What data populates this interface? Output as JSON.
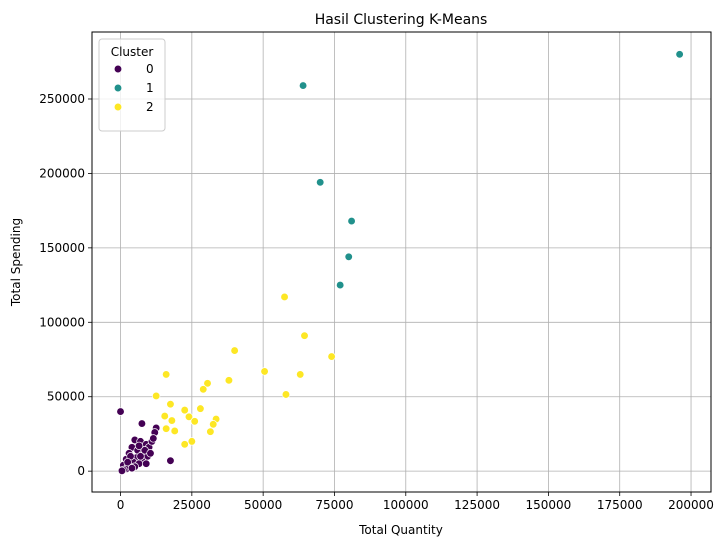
{
  "chart_data": {
    "type": "scatter",
    "title": "Hasil Clustering K-Means",
    "xlabel": "Total Quantity",
    "ylabel": "Total Spending",
    "xlim": [
      -10000,
      207000
    ],
    "ylim": [
      -14000,
      295000
    ],
    "xticks": [
      0,
      25000,
      50000,
      75000,
      100000,
      125000,
      150000,
      175000,
      200000
    ],
    "yticks": [
      0,
      50000,
      100000,
      150000,
      200000,
      250000
    ],
    "grid": true,
    "legend": {
      "title": "Cluster",
      "position": "top-left"
    },
    "series": [
      {
        "name": "0",
        "color": "#440154",
        "points": [
          [
            0,
            40000
          ],
          [
            7500,
            32000
          ],
          [
            17500,
            7000
          ],
          [
            12500,
            29000
          ],
          [
            12000,
            26000
          ],
          [
            5000,
            21000
          ],
          [
            7000,
            20000
          ],
          [
            9000,
            18000
          ],
          [
            10000,
            16000
          ],
          [
            11000,
            20000
          ],
          [
            4000,
            16000
          ],
          [
            6000,
            14000
          ],
          [
            8000,
            12000
          ],
          [
            9500,
            10000
          ],
          [
            3000,
            12000
          ],
          [
            5500,
            9000
          ],
          [
            7500,
            7000
          ],
          [
            2000,
            8000
          ],
          [
            4500,
            6000
          ],
          [
            6500,
            5000
          ],
          [
            1000,
            4000
          ],
          [
            3000,
            3000
          ],
          [
            2000,
            1500
          ],
          [
            1000,
            800
          ],
          [
            500,
            200
          ],
          [
            8500,
            14000
          ],
          [
            10500,
            12000
          ],
          [
            6500,
            17000
          ],
          [
            3500,
            10000
          ],
          [
            9000,
            5000
          ],
          [
            11500,
            22000
          ],
          [
            2500,
            6000
          ],
          [
            5000,
            3000
          ],
          [
            4000,
            2000
          ],
          [
            7000,
            10000
          ]
        ]
      },
      {
        "name": "1",
        "color": "#21918c",
        "points": [
          [
            196000,
            280000
          ],
          [
            64000,
            259000
          ],
          [
            70000,
            194000
          ],
          [
            81000,
            168000
          ],
          [
            80000,
            144000
          ],
          [
            77000,
            125000
          ]
        ]
      },
      {
        "name": "2",
        "color": "#fde725",
        "points": [
          [
            57500,
            117000
          ],
          [
            64500,
            91000
          ],
          [
            40000,
            81000
          ],
          [
            74000,
            77000
          ],
          [
            50500,
            67000
          ],
          [
            63000,
            65000
          ],
          [
            16000,
            65000
          ],
          [
            38000,
            61000
          ],
          [
            30500,
            59000
          ],
          [
            29000,
            55000
          ],
          [
            58000,
            51500
          ],
          [
            12500,
            50500
          ],
          [
            17500,
            45000
          ],
          [
            28000,
            42000
          ],
          [
            22500,
            41000
          ],
          [
            15500,
            37000
          ],
          [
            24000,
            36500
          ],
          [
            33500,
            35000
          ],
          [
            18000,
            34000
          ],
          [
            26000,
            33500
          ],
          [
            32500,
            31500
          ],
          [
            16000,
            28500
          ],
          [
            19000,
            27000
          ],
          [
            31500,
            26500
          ],
          [
            25000,
            20000
          ],
          [
            22500,
            18000
          ]
        ]
      }
    ]
  }
}
